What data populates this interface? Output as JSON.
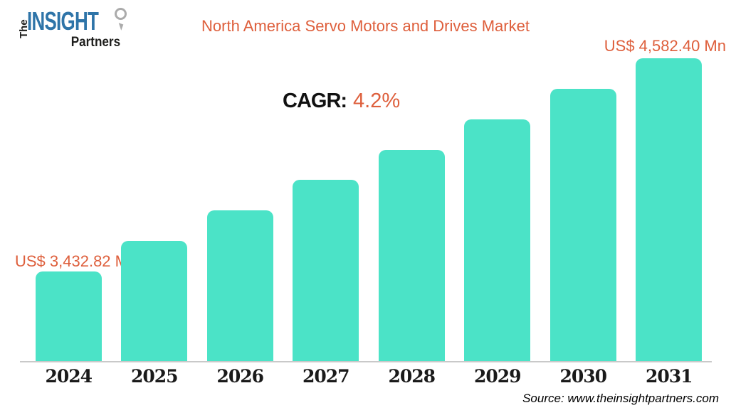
{
  "logo": {
    "the": "The",
    "insight": "INSIGHT",
    "partners": "Partners"
  },
  "header": {
    "title": "North America Servo Motors and Drives Market"
  },
  "cagr": {
    "label": "CAGR:",
    "value": "4.2%"
  },
  "value_labels": {
    "first": "US$ 3,432.82 Mn",
    "last": "US$ 4,582.40 Mn"
  },
  "source": {
    "text": "Source: www.theinsightpartners.com"
  },
  "colors": {
    "bar": "#4be3c7",
    "accent": "#de5f3c",
    "logo_blue": "#2e74a8",
    "logo_dark": "#1d1d1b",
    "axis_line": "#c9c9c9",
    "text_dark": "#111111"
  },
  "chart_data": {
    "type": "bar",
    "title": "North America Servo Motors and Drives Market",
    "unit": "US$ Mn",
    "cagr_percent": 4.2,
    "categories": [
      "2024",
      "2025",
      "2026",
      "2027",
      "2028",
      "2029",
      "2030",
      "2031"
    ],
    "values": [
      3432.82,
      3597.05,
      3761.28,
      3925.5,
      4089.73,
      4253.95,
      4418.17,
      4582.4
    ],
    "labeled_values": {
      "2024": 3432.82,
      "2031": 4582.4
    },
    "xlabel": "",
    "ylabel": "",
    "ylim": [
      2950,
      4582.4
    ],
    "y_axis_shown": false,
    "grid": false,
    "legend": false,
    "bar_corner_radius": "rounded-top"
  }
}
